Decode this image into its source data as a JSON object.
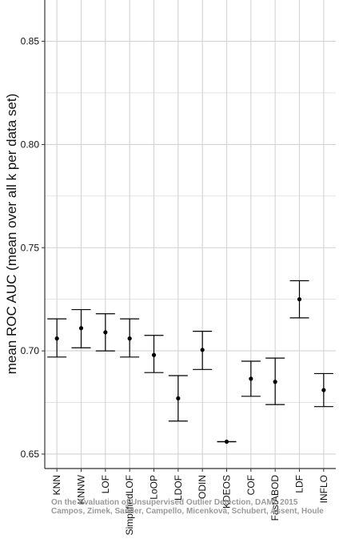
{
  "chart_data": {
    "type": "errorbar",
    "title": "",
    "xlabel": "",
    "ylabel": "mean ROC AUC (mean over all k per data set)",
    "ylim": [
      0.643,
      0.87
    ],
    "yticks": [
      0.65,
      0.7,
      0.75,
      0.8,
      0.85
    ],
    "ytick_labels": [
      "0.65",
      "0.70",
      "0.75",
      "0.80",
      "0.85"
    ],
    "grid": true,
    "categories": [
      "KNN",
      "KNNW",
      "LOF",
      "SimplifiedLOF",
      "LoOP",
      "LDOF",
      "ODIN",
      "KDEOS",
      "COF",
      "FastABOD",
      "LDF",
      "INFLO"
    ],
    "series": [
      {
        "mean": [
          0.706,
          0.711,
          0.709,
          0.706,
          0.698,
          0.677,
          0.7005,
          0.656,
          0.6865,
          0.685,
          0.725,
          0.681
        ],
        "lower": [
          0.697,
          0.7015,
          0.7,
          0.697,
          0.6895,
          0.666,
          0.691,
          0.656,
          0.678,
          0.674,
          0.716,
          0.673
        ],
        "upper": [
          0.7155,
          0.72,
          0.718,
          0.7155,
          0.7075,
          0.688,
          0.7095,
          0.656,
          0.695,
          0.6965,
          0.734,
          0.689
        ]
      }
    ],
    "colors": {
      "point": "#000000",
      "grid": "#d3d3d3",
      "axis": "#333333"
    }
  },
  "watermark": {
    "line1": "On the Evaluation of Unsupervised Outlier Detection, DAMI, 2015",
    "line2": "Campos, Zimek, Sander, Campello, Micenková, Schubert, Assent, Houle"
  }
}
